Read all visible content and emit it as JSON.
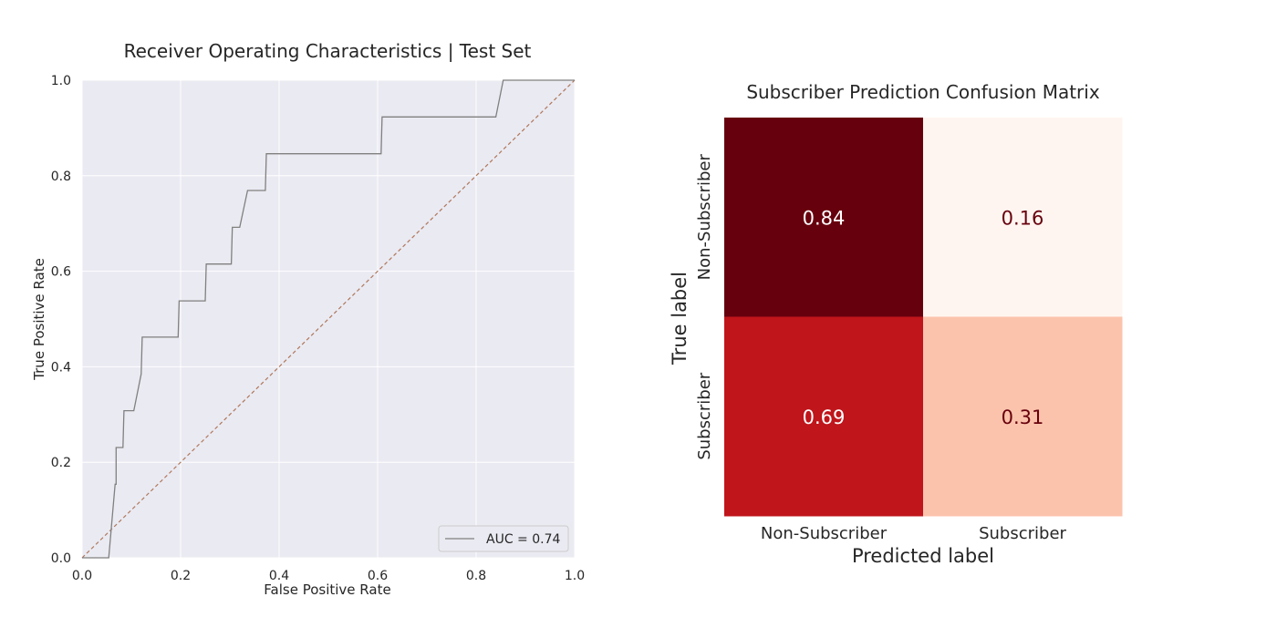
{
  "chart_data": [
    {
      "type": "line",
      "title": "Receiver Operating Characteristics | Test Set",
      "xlabel": "False Positive Rate",
      "ylabel": "True Positive Rate",
      "xlim": [
        0.0,
        1.0
      ],
      "ylim": [
        0.0,
        1.0
      ],
      "x_ticks": [
        "0.0",
        "0.2",
        "0.4",
        "0.6",
        "0.8",
        "1.0"
      ],
      "y_ticks": [
        "0.0",
        "0.2",
        "0.4",
        "0.6",
        "0.8",
        "1.0"
      ],
      "grid": true,
      "legend_position": "lower-right",
      "series": [
        {
          "name": "AUC = 0.74",
          "color": "#808080",
          "x": [
            0.0,
            0.054,
            0.067,
            0.069,
            0.069,
            0.083,
            0.085,
            0.105,
            0.12,
            0.122,
            0.195,
            0.197,
            0.25,
            0.252,
            0.303,
            0.305,
            0.32,
            0.336,
            0.338,
            0.372,
            0.374,
            0.607,
            0.609,
            0.84,
            0.855,
            1.0
          ],
          "y": [
            0.0,
            0.0,
            0.154,
            0.154,
            0.231,
            0.231,
            0.308,
            0.308,
            0.385,
            0.462,
            0.462,
            0.538,
            0.538,
            0.615,
            0.615,
            0.692,
            0.692,
            0.769,
            0.769,
            0.769,
            0.846,
            0.846,
            0.923,
            0.923,
            1.0,
            1.0
          ]
        }
      ],
      "reference_line": {
        "x": [
          0,
          1
        ],
        "y": [
          0,
          1
        ],
        "style": "dashed",
        "color": "#b0775b"
      },
      "background": "#eaeaf2"
    },
    {
      "type": "heatmap",
      "title": "Subscriber Prediction Confusion Matrix",
      "xlabel": "Predicted label",
      "ylabel": "True label",
      "x_categories": [
        "Non-Subscriber",
        "Subscriber"
      ],
      "y_categories": [
        "Non-Subscriber",
        "Subscriber"
      ],
      "values": [
        [
          0.84,
          0.16
        ],
        [
          0.69,
          0.31
        ]
      ],
      "labels": [
        [
          "0.84",
          "0.16"
        ],
        [
          "0.69",
          "0.31"
        ]
      ],
      "cell_colors": [
        [
          "#67000d",
          "#fff5f0"
        ],
        [
          "#bf151b",
          "#fcc3ac"
        ]
      ],
      "text_colors": [
        [
          "#ffffff",
          "#67000d"
        ],
        [
          "#ffffff",
          "#67000d"
        ]
      ],
      "colormap": "Reds"
    }
  ]
}
